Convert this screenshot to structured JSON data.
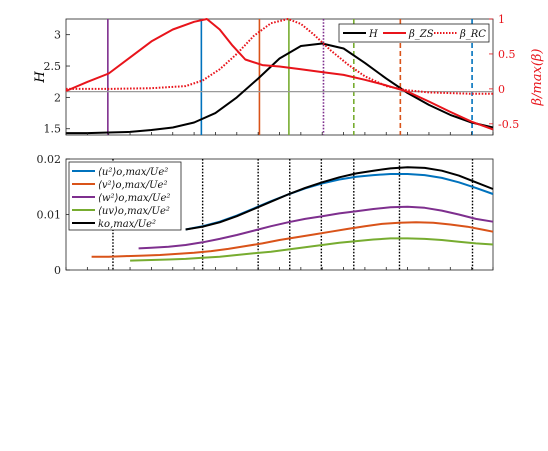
{
  "chart_data": [
    {
      "type": "line",
      "x_range": [
        0,
        100
      ],
      "ylabel_left": "H",
      "ylabel_right": "β/max(β)",
      "ylim_left": [
        1.4,
        3.25
      ],
      "ylim_right": [
        -0.66,
        1.0
      ],
      "yticks_left": [
        "1.5",
        "2",
        "2.5",
        "3"
      ],
      "yticks_right": [
        "-0.5",
        "0",
        "0.5",
        "1"
      ],
      "legend": [
        "H",
        "β_ZS",
        "β_RC"
      ],
      "legend_position": "top-right",
      "series": [
        {
          "name": "H",
          "axis": "left",
          "color": "#000000",
          "style": "solid",
          "x": [
            0,
            5,
            10,
            15,
            20,
            25,
            30,
            35,
            40,
            45,
            50,
            55,
            60,
            65,
            70,
            75,
            80,
            85,
            90,
            95,
            100
          ],
          "y": [
            1.43,
            1.43,
            1.44,
            1.45,
            1.48,
            1.52,
            1.6,
            1.75,
            2.0,
            2.3,
            2.62,
            2.82,
            2.86,
            2.78,
            2.55,
            2.3,
            2.07,
            1.88,
            1.72,
            1.6,
            1.52
          ]
        },
        {
          "name": "β_ZS",
          "axis": "right",
          "color": "#e8141b",
          "style": "solid",
          "x": [
            0,
            5,
            10,
            15,
            20,
            25,
            30,
            33,
            36,
            39,
            42,
            46,
            50,
            55,
            60,
            65,
            70,
            75,
            80,
            85,
            90,
            95,
            100
          ],
          "y": [
            -0.03,
            0.1,
            0.22,
            0.45,
            0.68,
            0.85,
            0.96,
            1.0,
            0.85,
            0.62,
            0.42,
            0.34,
            0.32,
            0.28,
            0.24,
            0.2,
            0.13,
            0.05,
            -0.04,
            -0.18,
            -0.33,
            -0.47,
            -0.58
          ]
        },
        {
          "name": "β_RC",
          "axis": "right",
          "color": "#e8141b",
          "style": "dotted",
          "x": [
            0,
            10,
            20,
            28,
            32,
            36,
            40,
            44,
            48,
            52,
            55,
            58,
            62,
            66,
            70,
            75,
            80,
            85,
            90,
            95,
            100
          ],
          "y": [
            0.0,
            0.0,
            0.01,
            0.04,
            0.12,
            0.28,
            0.5,
            0.76,
            0.94,
            1.0,
            0.93,
            0.78,
            0.55,
            0.35,
            0.18,
            0.04,
            -0.02,
            -0.05,
            -0.06,
            -0.07,
            -0.07
          ]
        }
      ],
      "vertical_lines": [
        {
          "x": 9.8,
          "color": "#7e2f8e",
          "style": "solid"
        },
        {
          "x": 31.7,
          "color": "#0072bd",
          "style": "solid"
        },
        {
          "x": 45.3,
          "color": "#d95319",
          "style": "solid"
        },
        {
          "x": 52.2,
          "color": "#77ac30",
          "style": "solid"
        },
        {
          "x": 60.3,
          "color": "#7e2f8e",
          "style": "dotted"
        },
        {
          "x": 67.4,
          "color": "#77ac30",
          "style": "dashed"
        },
        {
          "x": 78.3,
          "color": "#d95319",
          "style": "dashed"
        },
        {
          "x": 95.1,
          "color": "#0072bd",
          "style": "dashed"
        }
      ]
    },
    {
      "type": "line",
      "x_range": [
        0,
        100
      ],
      "ylim": [
        0,
        0.02
      ],
      "yticks": [
        "0",
        "0.01",
        "0.02"
      ],
      "legend": [
        "⟨u²⟩o,max/Ue²",
        "⟨v²⟩o,max/Ue²",
        "⟨w²⟩o,max/Ue²",
        "⟨uv⟩o,max/Ue²",
        "ko,max/Ue²"
      ],
      "legend_position": "top-left",
      "series": [
        {
          "name": "⟨u²⟩o,max/Ue²",
          "color": "#0072bd",
          "x": [
            28,
            32,
            36,
            40,
            44,
            48,
            52,
            56,
            60,
            64,
            68,
            72,
            76,
            80,
            84,
            88,
            92,
            96,
            100
          ],
          "y": [
            0.0073,
            0.0079,
            0.0087,
            0.0098,
            0.0111,
            0.0124,
            0.0136,
            0.0147,
            0.0156,
            0.0163,
            0.0168,
            0.0171,
            0.0173,
            0.0173,
            0.0171,
            0.0166,
            0.0158,
            0.0148,
            0.0137
          ]
        },
        {
          "name": "⟨v²⟩o,max/Ue²",
          "color": "#d95319",
          "x": [
            6,
            10,
            14,
            18,
            22,
            26,
            30,
            34,
            38,
            42,
            46,
            50,
            54,
            58,
            62,
            66,
            70,
            74,
            78,
            82,
            86,
            90,
            94,
            98,
            100
          ],
          "y": [
            0.0024,
            0.0024,
            0.0025,
            0.0026,
            0.0027,
            0.0029,
            0.0031,
            0.0034,
            0.0038,
            0.0043,
            0.0048,
            0.0054,
            0.0059,
            0.0064,
            0.0069,
            0.0074,
            0.0079,
            0.0083,
            0.0085,
            0.0086,
            0.0085,
            0.0082,
            0.0078,
            0.0072,
            0.0069
          ]
        },
        {
          "name": "⟨w²⟩o,max/Ue²",
          "color": "#7e2f8e",
          "x": [
            17,
            20,
            24,
            28,
            32,
            36,
            40,
            44,
            48,
            52,
            56,
            60,
            64,
            68,
            72,
            76,
            80,
            84,
            88,
            92,
            96,
            100
          ],
          "y": [
            0.0039,
            0.004,
            0.0042,
            0.0045,
            0.005,
            0.0056,
            0.0063,
            0.0071,
            0.0079,
            0.0086,
            0.0092,
            0.0097,
            0.0102,
            0.0106,
            0.011,
            0.0113,
            0.0114,
            0.0112,
            0.0107,
            0.01,
            0.0092,
            0.0087
          ]
        },
        {
          "name": "⟨uv⟩o,max/Ue²",
          "color": "#77ac30",
          "x": [
            15,
            20,
            24,
            28,
            32,
            36,
            40,
            44,
            48,
            52,
            56,
            60,
            64,
            68,
            72,
            76,
            80,
            84,
            88,
            92,
            96,
            100
          ],
          "y": [
            0.0017,
            0.0018,
            0.0019,
            0.002,
            0.0022,
            0.0024,
            0.0027,
            0.003,
            0.0033,
            0.0037,
            0.0041,
            0.0045,
            0.0049,
            0.0052,
            0.0055,
            0.0057,
            0.0057,
            0.0056,
            0.0054,
            0.0051,
            0.0048,
            0.0046
          ]
        },
        {
          "name": "ko,max/Ue²",
          "color": "#000000",
          "x": [
            28,
            32,
            36,
            40,
            44,
            48,
            52,
            56,
            60,
            64,
            68,
            72,
            76,
            80,
            84,
            88,
            92,
            96,
            100
          ],
          "y": [
            0.0073,
            0.0078,
            0.0086,
            0.0097,
            0.011,
            0.0123,
            0.0136,
            0.0148,
            0.0158,
            0.0167,
            0.0174,
            0.0179,
            0.0183,
            0.0185,
            0.0184,
            0.0179,
            0.017,
            0.0158,
            0.0146
          ]
        }
      ],
      "vertical_lines": [
        {
          "x": 11,
          "color": "#000000",
          "style": "dotted"
        },
        {
          "x": 32,
          "color": "#000000",
          "style": "dotted"
        },
        {
          "x": 45,
          "color": "#000000",
          "style": "dotted"
        },
        {
          "x": 52.4,
          "color": "#000000",
          "style": "dotted"
        },
        {
          "x": 59.8,
          "color": "#000000",
          "style": "dotted"
        },
        {
          "x": 67.4,
          "color": "#000000",
          "style": "dotted"
        },
        {
          "x": 78.1,
          "color": "#000000",
          "style": "dotted"
        },
        {
          "x": 95.2,
          "color": "#000000",
          "style": "dotted"
        }
      ]
    }
  ]
}
